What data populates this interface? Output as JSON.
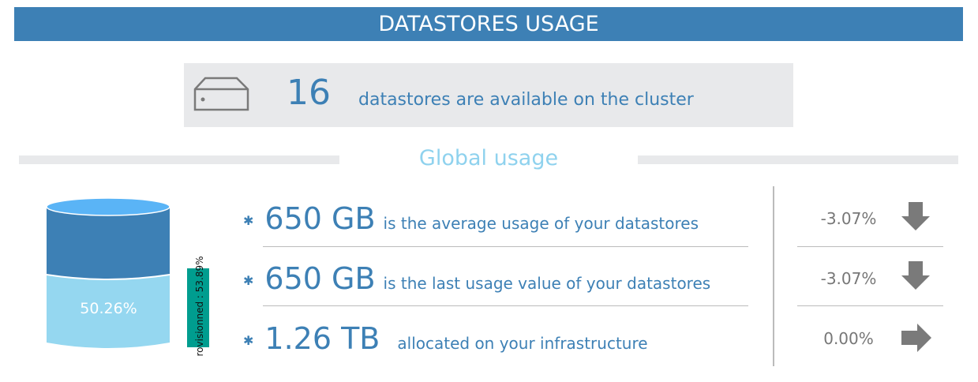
{
  "header": {
    "title": "DATASTORES USAGE"
  },
  "summary": {
    "count": "16",
    "text": "datastores are available on the cluster",
    "icon": "server-icon"
  },
  "section": {
    "title": "Global usage"
  },
  "cylinder": {
    "used_percent": 50.26,
    "used_label": "50.26%",
    "provisioned_label": "rovisionned : 53.89%",
    "provisioned_percent": 53.89
  },
  "stats": [
    {
      "value": "650 GB",
      "desc": "is the average usage of your datastores",
      "change": "-3.07%",
      "trend": "down"
    },
    {
      "value": "650 GB",
      "desc": "is the last usage value of your datastores",
      "change": "-3.07%",
      "trend": "down"
    },
    {
      "value": "1.26 TB",
      "desc": "allocated on your infrastructure",
      "change": "0.00%",
      "trend": "right"
    }
  ],
  "colors": {
    "primary": "#3d80b5",
    "light": "#95d7f0",
    "top": "#5ab4f6",
    "teal": "#009d8f",
    "gray": "#7a7a7a"
  }
}
